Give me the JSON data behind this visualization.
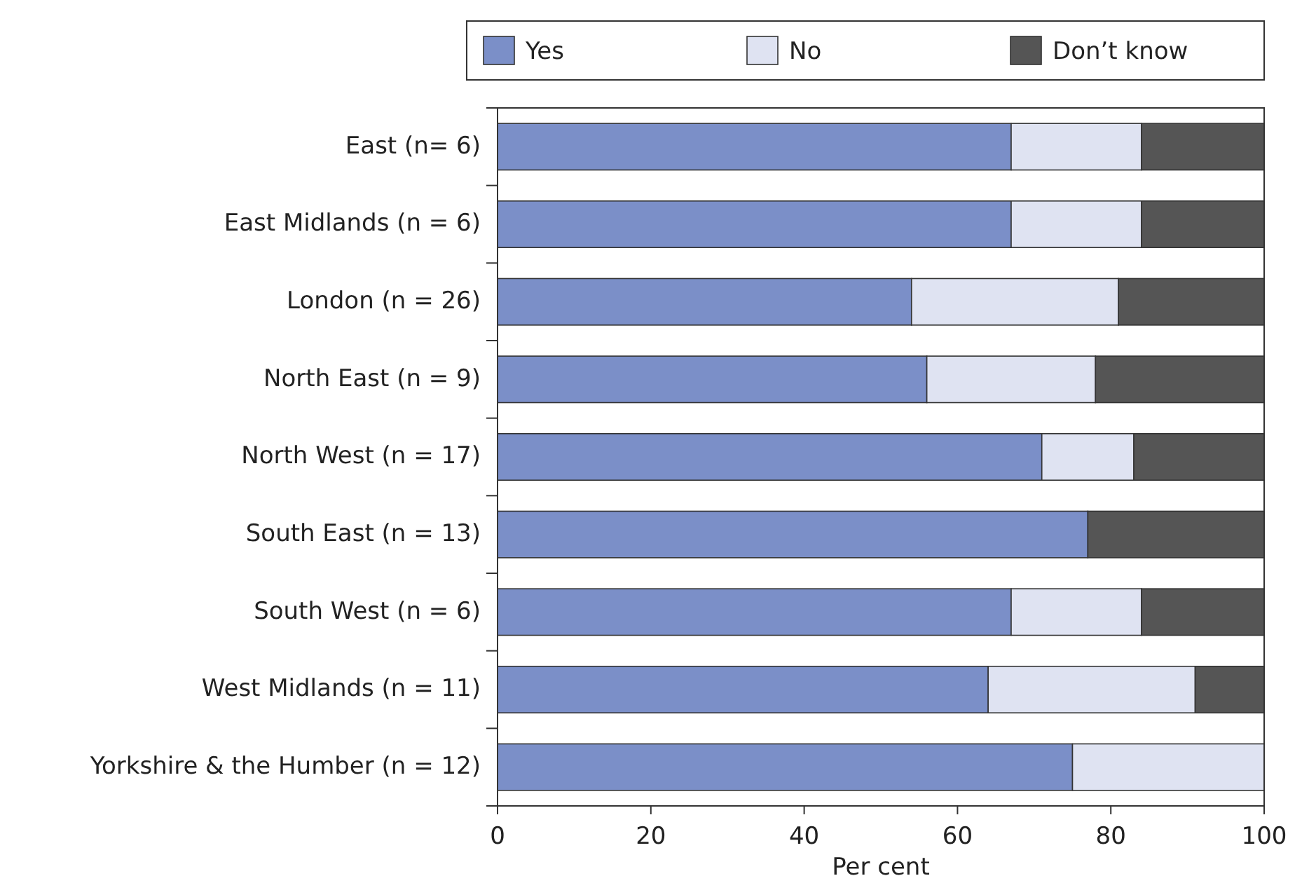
{
  "chart_data": {
    "type": "bar",
    "orientation": "horizontal",
    "stacked": true,
    "xlabel": "Per cent",
    "categories": [
      "East (n= 6)",
      "East Midlands (n = 6)",
      "London (n = 26)",
      "North East (n = 9)",
      "North West (n = 17)",
      "South East (n = 13)",
      "South West (n = 6)",
      "West Midlands (n = 11)",
      "Yorkshire & the Humber (n = 12)"
    ],
    "series": [
      {
        "name": "Yes",
        "color": "#7b8fc8",
        "values": [
          67,
          67,
          54,
          56,
          71,
          77,
          67,
          64,
          75
        ]
      },
      {
        "name": "No",
        "color": "#dfe3f2",
        "values": [
          17,
          17,
          27,
          22,
          12,
          0,
          17,
          27,
          25
        ]
      },
      {
        "name": "Don’t know",
        "color": "#555555",
        "values": [
          16,
          16,
          19,
          22,
          17,
          23,
          16,
          9,
          0
        ]
      }
    ],
    "xlim": [
      0,
      100
    ],
    "xticks": [
      0,
      20,
      40,
      60,
      80,
      100
    ],
    "grid": false,
    "legend": "top"
  }
}
